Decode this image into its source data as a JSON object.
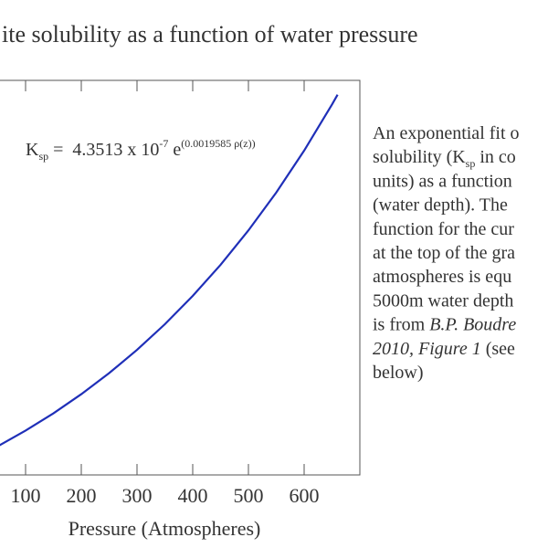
{
  "chart_data": {
    "type": "line",
    "title": "ite solubility as a function of water pressure",
    "x_label": "Pressure (Atmospheres)",
    "formula": [
      {
        "text": "K"
      },
      {
        "text": "sp",
        "sub": true
      },
      {
        "text": " =  4.3513 x 10"
      },
      {
        "text": "-7",
        "sup": true
      },
      {
        "text": " e"
      },
      {
        "text": "(0.0019585 ρ(z))",
        "sup": true
      }
    ],
    "note": [
      [
        {
          "text": "An exponential fit o"
        }
      ],
      [
        {
          "text": "solubility (K"
        },
        {
          "text": "sp",
          "sub": true
        },
        {
          "text": " in co"
        }
      ],
      [
        {
          "text": "units) as a function"
        }
      ],
      [
        {
          "text": "(water depth). The"
        }
      ],
      [
        {
          "text": "function for the cur"
        }
      ],
      [
        {
          "text": "at the top of the gra"
        }
      ],
      [
        {
          "text": "atmospheres is equ"
        }
      ],
      [
        {
          "text": "5000m water depth"
        }
      ],
      [
        {
          "text": "is from "
        },
        {
          "text": "B.P. Boudre",
          "italic": true
        }
      ],
      [
        {
          "text": "2010, Figure 1",
          "italic": true
        },
        {
          "text": " (see"
        }
      ],
      [
        {
          "text": "below)"
        }
      ]
    ],
    "x": [
      50,
      100,
      150,
      200,
      250,
      300,
      350,
      400,
      450,
      500,
      550,
      600,
      650,
      660
    ],
    "series": [
      {
        "color": "#1f2fb8",
        "values": [
          4.799e-07,
          5.293e-07,
          5.837e-07,
          6.438e-07,
          7.1e-07,
          7.831e-07,
          8.636e-07,
          9.525e-07,
          1.0504e-06,
          1.1586e-06,
          1.2777e-06,
          1.4092e-06,
          1.5542e-06,
          1.5849e-06
        ]
      }
    ],
    "xlim": [
      0,
      700
    ],
    "xticks": [
      100,
      200,
      300,
      400,
      500,
      600
    ],
    "ylim": [
      3.9e-07,
      1.63e-06
    ]
  }
}
